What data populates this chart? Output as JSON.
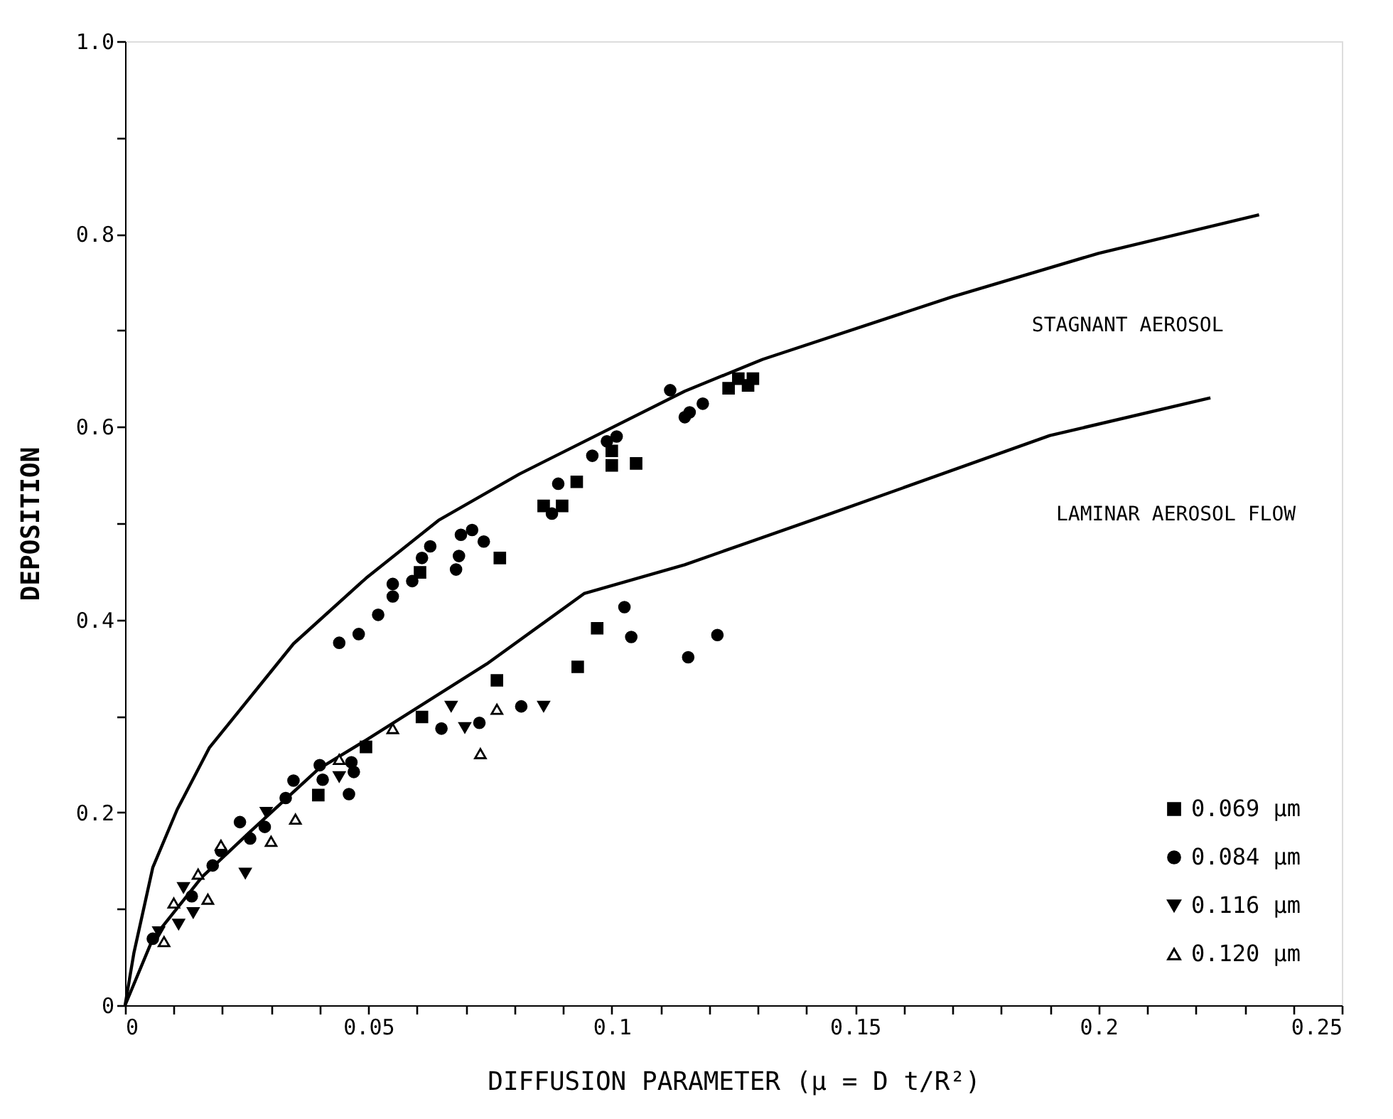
{
  "chart_data": {
    "type": "scatter",
    "xlabel": "DIFFUSION PARAMETER (µ = D t/R²)",
    "ylabel": "DEPOSITION",
    "xlim": [
      0,
      0.25
    ],
    "ylim": [
      0,
      1
    ],
    "xticks": [
      0,
      {
        "value": 0.01,
        "label": null
      },
      {
        "value": 0.02,
        "label": null
      },
      {
        "value": 0.03,
        "label": null
      },
      {
        "value": 0.04,
        "label": null
      },
      0.05,
      {
        "value": 0.06,
        "label": null
      },
      {
        "value": 0.07,
        "label": null
      },
      {
        "value": 0.08,
        "label": null
      },
      {
        "value": 0.09,
        "label": null
      },
      0.1,
      {
        "value": 0.11,
        "label": null
      },
      {
        "value": 0.12,
        "label": null
      },
      {
        "value": 0.13,
        "label": null
      },
      {
        "value": 0.14,
        "label": null
      },
      0.15,
      {
        "value": 0.16,
        "label": null
      },
      {
        "value": 0.17,
        "label": null
      },
      {
        "value": 0.18,
        "label": null
      },
      {
        "value": 0.19,
        "label": null
      },
      0.2,
      {
        "value": 0.21,
        "label": null
      },
      {
        "value": 0.22,
        "label": null
      },
      {
        "value": 0.23,
        "label": null
      },
      {
        "value": 0.24,
        "label": null
      },
      0.25
    ],
    "yticks": [
      0,
      {
        "value": 0.1,
        "label": null
      },
      0.2,
      {
        "value": 0.3,
        "label": null
      },
      0.4,
      {
        "value": 0.5,
        "label": null
      },
      0.6,
      {
        "value": 0.7,
        "label": null
      },
      0.8,
      {
        "value": 0.9,
        "label": null
      },
      {
        "value": 1,
        "label": "1.0"
      }
    ],
    "grid": false,
    "legend": "bottom right",
    "annotations": [
      "STAGNANT AEROSOL",
      "LAMINAR AEROSOL FLOW"
    ],
    "series": [
      {
        "type": "line",
        "color": "#000000",
        "marker": "none",
        "line_style": "solid",
        "x": [
          0,
          0.0018,
          0.0057,
          0.0107,
          0.0173,
          0.0346,
          0.0495,
          0.0644,
          0.081,
          0.115,
          0.131,
          0.17,
          0.2,
          0.233
        ],
        "values": [
          0,
          0.054,
          0.143,
          0.203,
          0.267,
          0.375,
          0.443,
          0.503,
          0.551,
          0.637,
          0.67,
          0.735,
          0.78,
          0.82
        ]
      },
      {
        "type": "line",
        "color": "#000000",
        "marker": "none",
        "line_style": "solid",
        "x": [
          0,
          0.0057,
          0.0158,
          0.0257,
          0.0397,
          0.0495,
          0.0743,
          0.0943,
          0.115,
          0.145,
          0.19,
          0.223
        ],
        "values": [
          0,
          0.069,
          0.133,
          0.18,
          0.245,
          0.275,
          0.354,
          0.427,
          0.457,
          0.51,
          0.591,
          0.63
        ]
      },
      {
        "name": "0.069 µm",
        "color": "#000000",
        "marker": "square",
        "x": [
          0.0397,
          0.0495,
          0.0606,
          0.061,
          0.0764,
          0.077,
          0.086,
          0.0898,
          0.0928,
          0.093,
          0.097,
          0.1,
          0.1,
          0.105,
          0.124,
          0.126,
          0.128,
          0.129
        ],
        "values": [
          0.218,
          0.268,
          0.449,
          0.299,
          0.337,
          0.464,
          0.518,
          0.518,
          0.543,
          0.351,
          0.391,
          0.575,
          0.56,
          0.562,
          0.64,
          0.65,
          0.643,
          0.65
        ]
      },
      {
        "name": "0.084 µm",
        "color": "#000000",
        "marker": "circle",
        "x": [
          0.0057,
          0.0137,
          0.018,
          0.0197,
          0.0236,
          0.0257,
          0.0287,
          0.033,
          0.0346,
          0.04,
          0.0406,
          0.046,
          0.0465,
          0.047,
          0.044,
          0.048,
          0.052,
          0.055,
          0.055,
          0.059,
          0.061,
          0.0627,
          0.065,
          0.068,
          0.0686,
          0.069,
          0.0713,
          0.0728,
          0.0737,
          0.0814,
          0.0877,
          0.089,
          0.096,
          0.099,
          0.101,
          0.1026,
          0.104,
          0.112,
          0.115,
          0.1157,
          0.116,
          0.1187,
          0.1217
        ],
        "values": [
          0.069,
          0.113,
          0.145,
          0.16,
          0.19,
          0.173,
          0.185,
          0.215,
          0.233,
          0.249,
          0.234,
          0.219,
          0.252,
          0.242,
          0.376,
          0.385,
          0.405,
          0.424,
          0.437,
          0.44,
          0.464,
          0.476,
          0.287,
          0.452,
          0.466,
          0.488,
          0.493,
          0.293,
          0.481,
          0.31,
          0.51,
          0.541,
          0.57,
          0.585,
          0.59,
          0.413,
          0.382,
          0.638,
          0.61,
          0.361,
          0.615,
          0.624,
          0.384
        ]
      },
      {
        "name": "0.116 µm",
        "color": "#000000",
        "marker": "triangle-down",
        "x": [
          0.0069,
          0.011,
          0.012,
          0.014,
          0.0247,
          0.029,
          0.044,
          0.067,
          0.0698,
          0.086
        ],
        "values": [
          0.076,
          0.084,
          0.122,
          0.096,
          0.137,
          0.2,
          0.237,
          0.31,
          0.288,
          0.31
        ]
      },
      {
        "name": "0.120 µm",
        "color": "#000000",
        "marker": "triangle",
        "x": [
          0.008,
          0.01,
          0.015,
          0.017,
          0.0197,
          0.03,
          0.035,
          0.044,
          0.055,
          0.073,
          0.0764
        ],
        "values": [
          0.066,
          0.106,
          0.136,
          0.11,
          0.166,
          0.17,
          0.193,
          0.255,
          0.287,
          0.261,
          0.307
        ]
      }
    ]
  }
}
